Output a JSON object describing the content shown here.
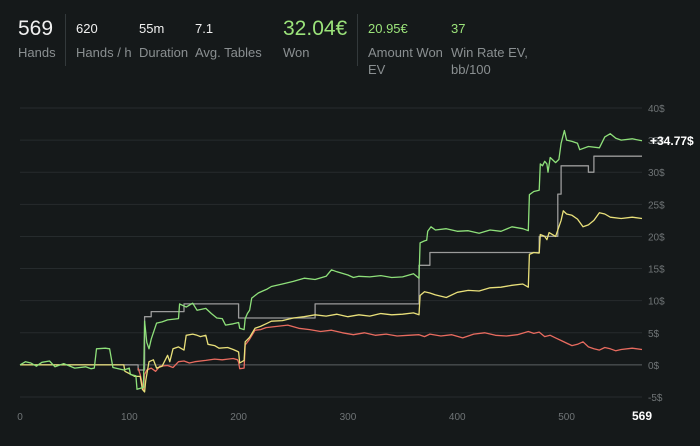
{
  "stats": {
    "hands": {
      "value": "569",
      "label": "Hands"
    },
    "hands_per_hour": {
      "value": "620",
      "label": "Hands / h"
    },
    "duration": {
      "value": "55m",
      "label": "Duration"
    },
    "avg_tables": {
      "value": "7.1",
      "label": "Avg. Tables"
    },
    "won": {
      "value": "32.04€",
      "label": "Won"
    },
    "amount_won_ev": {
      "value": "20.95€",
      "label": "Amount Won",
      "label2": "EV"
    },
    "win_rate_ev": {
      "value": "37",
      "label": "Win Rate EV,",
      "label2": "bb/100"
    }
  },
  "colors": {
    "background": "#15191a",
    "green": "#8ee07a",
    "gray": "#9b9b9b",
    "yellow": "#e9e07a",
    "red": "#e86b5f",
    "axis_text": "#6f7476",
    "grid": "#262b2d"
  },
  "chart_data": {
    "type": "line",
    "x_ticks": [
      "0",
      "100",
      "200",
      "300",
      "400",
      "500"
    ],
    "x_end_label": "569",
    "xlim": [
      0,
      569
    ],
    "y_ticks": [
      "-5$",
      "0$",
      "5$",
      "10$",
      "15$",
      "20$",
      "25$",
      "30$",
      "35$",
      "40$"
    ],
    "ylim": [
      -5,
      40
    ],
    "end_label": "+34.77$",
    "series": [
      {
        "color": "green",
        "points": [
          [
            0,
            0
          ],
          [
            5,
            0.5
          ],
          [
            10,
            0.3
          ],
          [
            15,
            -0.2
          ],
          [
            20,
            0.4
          ],
          [
            27,
            0.6
          ],
          [
            32,
            -0.3
          ],
          [
            40,
            0.2
          ],
          [
            50,
            -0.5
          ],
          [
            60,
            -0.3
          ],
          [
            65,
            -0.6
          ],
          [
            68,
            -0.5
          ],
          [
            70,
            2.5
          ],
          [
            78,
            2.6
          ],
          [
            82,
            2.5
          ],
          [
            85,
            -0.4
          ],
          [
            95,
            -0.8
          ],
          [
            100,
            -0.5
          ],
          [
            101,
            -1.5
          ],
          [
            106,
            -1.7
          ],
          [
            107,
            -3.8
          ],
          [
            113,
            -3.5
          ],
          [
            114,
            6.8
          ],
          [
            116,
            3.5
          ],
          [
            118,
            2.5
          ],
          [
            120,
            4
          ],
          [
            125,
            6.5
          ],
          [
            130,
            6.7
          ],
          [
            135,
            7
          ],
          [
            145,
            7.2
          ],
          [
            146,
            9.5
          ],
          [
            152,
            9
          ],
          [
            158,
            9.6
          ],
          [
            162,
            8.5
          ],
          [
            170,
            8.8
          ],
          [
            175,
            8
          ],
          [
            180,
            7.3
          ],
          [
            185,
            7.2
          ],
          [
            188,
            6.2
          ],
          [
            195,
            6.4
          ],
          [
            200,
            6.6
          ],
          [
            201,
            5.7
          ],
          [
            205,
            5.5
          ],
          [
            206,
            7.2
          ],
          [
            208,
            8
          ],
          [
            210,
            8.5
          ],
          [
            212,
            10.4
          ],
          [
            218,
            11.2
          ],
          [
            222,
            11.5
          ],
          [
            226,
            11.8
          ],
          [
            230,
            12.2
          ],
          [
            240,
            12.6
          ],
          [
            250,
            13
          ],
          [
            260,
            13.5
          ],
          [
            270,
            13.3
          ],
          [
            280,
            13.8
          ],
          [
            285,
            14.8
          ],
          [
            290,
            14.5
          ],
          [
            300,
            14
          ],
          [
            305,
            13.6
          ],
          [
            310,
            13.8
          ],
          [
            320,
            13.7
          ],
          [
            330,
            13.9
          ],
          [
            340,
            13.6
          ],
          [
            350,
            13.7
          ],
          [
            360,
            14.2
          ],
          [
            365,
            13.5
          ],
          [
            366,
            19
          ],
          [
            370,
            19.3
          ],
          [
            372,
            19.4
          ],
          [
            373,
            20.8
          ],
          [
            376,
            21.5
          ],
          [
            380,
            21
          ],
          [
            390,
            21.2
          ],
          [
            400,
            20.8
          ],
          [
            410,
            20.9
          ],
          [
            420,
            20.5
          ],
          [
            430,
            21
          ],
          [
            440,
            20.8
          ],
          [
            450,
            21.5
          ],
          [
            460,
            21.2
          ],
          [
            465,
            20.9
          ],
          [
            466,
            26.5
          ],
          [
            470,
            27
          ],
          [
            475,
            27.2
          ],
          [
            476,
            31.3
          ],
          [
            478,
            31
          ],
          [
            480,
            31.7
          ],
          [
            482,
            31.3
          ],
          [
            483,
            30
          ],
          [
            485,
            32.3
          ],
          [
            490,
            31.5
          ],
          [
            493,
            32
          ],
          [
            495,
            34.5
          ],
          [
            498,
            36.5
          ],
          [
            500,
            35
          ],
          [
            505,
            34.8
          ],
          [
            510,
            34.5
          ],
          [
            512,
            33.5
          ],
          [
            520,
            34
          ],
          [
            530,
            33.8
          ],
          [
            535,
            35.5
          ],
          [
            540,
            36
          ],
          [
            545,
            35.3
          ],
          [
            550,
            35
          ],
          [
            560,
            35.2
          ],
          [
            569,
            34.9
          ]
        ]
      },
      {
        "color": "gray",
        "points": [
          [
            0,
            0
          ],
          [
            108,
            0
          ],
          [
            108,
            -0.8
          ],
          [
            114,
            -0.8
          ],
          [
            114,
            7.5
          ],
          [
            120,
            7.5
          ],
          [
            120,
            8.3
          ],
          [
            150,
            8.3
          ],
          [
            150,
            9.5
          ],
          [
            200,
            9.5
          ],
          [
            200,
            7.3
          ],
          [
            270,
            7.3
          ],
          [
            270,
            9.5
          ],
          [
            365,
            9.5
          ],
          [
            365,
            15.5
          ],
          [
            375,
            15.5
          ],
          [
            375,
            17.5
          ],
          [
            475,
            17.5
          ],
          [
            475,
            20
          ],
          [
            492,
            20
          ],
          [
            492,
            26.6
          ],
          [
            495,
            26.6
          ],
          [
            495,
            31
          ],
          [
            520,
            31
          ],
          [
            520,
            30
          ],
          [
            525,
            30
          ],
          [
            525,
            32.5
          ],
          [
            569,
            32.5
          ]
        ]
      },
      {
        "color": "yellow",
        "points": [
          [
            0,
            0
          ],
          [
            95,
            0
          ],
          [
            96,
            -1
          ],
          [
            105,
            -1.8
          ],
          [
            110,
            -1.8
          ],
          [
            112,
            -3.8
          ],
          [
            114,
            -4.2
          ],
          [
            115,
            -2.5
          ],
          [
            118,
            0.5
          ],
          [
            122,
            0.8
          ],
          [
            125,
            -0.5
          ],
          [
            130,
            -0.2
          ],
          [
            135,
            1.5
          ],
          [
            137,
            0.5
          ],
          [
            140,
            2.5
          ],
          [
            145,
            2.8
          ],
          [
            150,
            2.3
          ],
          [
            152,
            4.6
          ],
          [
            158,
            4.8
          ],
          [
            162,
            4.6
          ],
          [
            165,
            4.4
          ],
          [
            170,
            4.6
          ],
          [
            172,
            3.2
          ],
          [
            178,
            3
          ],
          [
            182,
            2.6
          ],
          [
            190,
            2.7
          ],
          [
            195,
            2.4
          ],
          [
            199,
            2.1
          ],
          [
            200,
            2
          ],
          [
            201,
            0.3
          ],
          [
            205,
            0.7
          ],
          [
            206,
            3.6
          ],
          [
            210,
            4.3
          ],
          [
            215,
            5.7
          ],
          [
            220,
            6
          ],
          [
            225,
            6.4
          ],
          [
            230,
            6.8
          ],
          [
            240,
            6.9
          ],
          [
            250,
            7.3
          ],
          [
            260,
            7.5
          ],
          [
            270,
            7.8
          ],
          [
            280,
            7.6
          ],
          [
            290,
            7.9
          ],
          [
            300,
            7.5
          ],
          [
            310,
            7.8
          ],
          [
            320,
            7.6
          ],
          [
            330,
            8
          ],
          [
            340,
            7.8
          ],
          [
            350,
            7.9
          ],
          [
            360,
            8.1
          ],
          [
            365,
            7.8
          ],
          [
            366,
            10.8
          ],
          [
            370,
            11.4
          ],
          [
            375,
            11.2
          ],
          [
            380,
            10.9
          ],
          [
            390,
            10.5
          ],
          [
            400,
            11.3
          ],
          [
            410,
            11.6
          ],
          [
            420,
            11.5
          ],
          [
            430,
            12
          ],
          [
            440,
            12.1
          ],
          [
            450,
            12.4
          ],
          [
            460,
            12.6
          ],
          [
            465,
            12.1
          ],
          [
            466,
            17.2
          ],
          [
            470,
            17.5
          ],
          [
            475,
            17.4
          ],
          [
            476,
            20.3
          ],
          [
            480,
            20
          ],
          [
            482,
            19.5
          ],
          [
            484,
            20.6
          ],
          [
            490,
            20
          ],
          [
            495,
            22.5
          ],
          [
            497,
            24
          ],
          [
            500,
            23.5
          ],
          [
            505,
            23.3
          ],
          [
            510,
            22.7
          ],
          [
            515,
            21.5
          ],
          [
            520,
            21.8
          ],
          [
            525,
            22.5
          ],
          [
            530,
            23.7
          ],
          [
            535,
            23.5
          ],
          [
            540,
            23
          ],
          [
            550,
            22.8
          ],
          [
            560,
            23
          ],
          [
            569,
            22.8
          ]
        ]
      },
      {
        "color": "red",
        "points": [
          [
            108,
            -0.5
          ],
          [
            110,
            -1.5
          ],
          [
            113,
            -3.8
          ],
          [
            114,
            -1.5
          ],
          [
            116,
            -0.8
          ],
          [
            120,
            -0.5
          ],
          [
            124,
            -1
          ],
          [
            128,
            -0.2
          ],
          [
            135,
            -0.1
          ],
          [
            140,
            -0.4
          ],
          [
            145,
            0.5
          ],
          [
            150,
            0.6
          ],
          [
            155,
            0.3
          ],
          [
            160,
            0.5
          ],
          [
            170,
            0.7
          ],
          [
            178,
            0.9
          ],
          [
            185,
            0.8
          ],
          [
            190,
            0.9
          ],
          [
            195,
            1
          ],
          [
            199,
            0.8
          ],
          [
            200,
            0.4
          ],
          [
            201,
            -0.6
          ],
          [
            205,
            -0.5
          ],
          [
            206,
            3.1
          ],
          [
            210,
            4
          ],
          [
            215,
            5.4
          ],
          [
            220,
            5.5
          ],
          [
            225,
            5.8
          ],
          [
            235,
            6
          ],
          [
            245,
            6.2
          ],
          [
            255,
            5.7
          ],
          [
            265,
            5.5
          ],
          [
            275,
            5.2
          ],
          [
            285,
            5.4
          ],
          [
            295,
            5
          ],
          [
            305,
            4.7
          ],
          [
            315,
            5
          ],
          [
            325,
            4.6
          ],
          [
            335,
            4.8
          ],
          [
            345,
            4.5
          ],
          [
            355,
            4.6
          ],
          [
            365,
            4.7
          ],
          [
            370,
            4.4
          ],
          [
            375,
            4.8
          ],
          [
            385,
            4.5
          ],
          [
            395,
            4.7
          ],
          [
            405,
            4.2
          ],
          [
            415,
            4.8
          ],
          [
            425,
            5
          ],
          [
            435,
            4.6
          ],
          [
            445,
            4.5
          ],
          [
            455,
            4.7
          ],
          [
            465,
            5.2
          ],
          [
            470,
            4.9
          ],
          [
            475,
            5.1
          ],
          [
            480,
            4.4
          ],
          [
            485,
            4.6
          ],
          [
            490,
            4.2
          ],
          [
            495,
            3.8
          ],
          [
            500,
            3.4
          ],
          [
            505,
            3
          ],
          [
            510,
            3.2
          ],
          [
            515,
            3.6
          ],
          [
            520,
            2.8
          ],
          [
            525,
            2.5
          ],
          [
            530,
            2.3
          ],
          [
            535,
            2.7
          ],
          [
            540,
            2.5
          ],
          [
            545,
            2.2
          ],
          [
            550,
            2.4
          ],
          [
            560,
            2.6
          ],
          [
            569,
            2.4
          ]
        ]
      }
    ]
  }
}
